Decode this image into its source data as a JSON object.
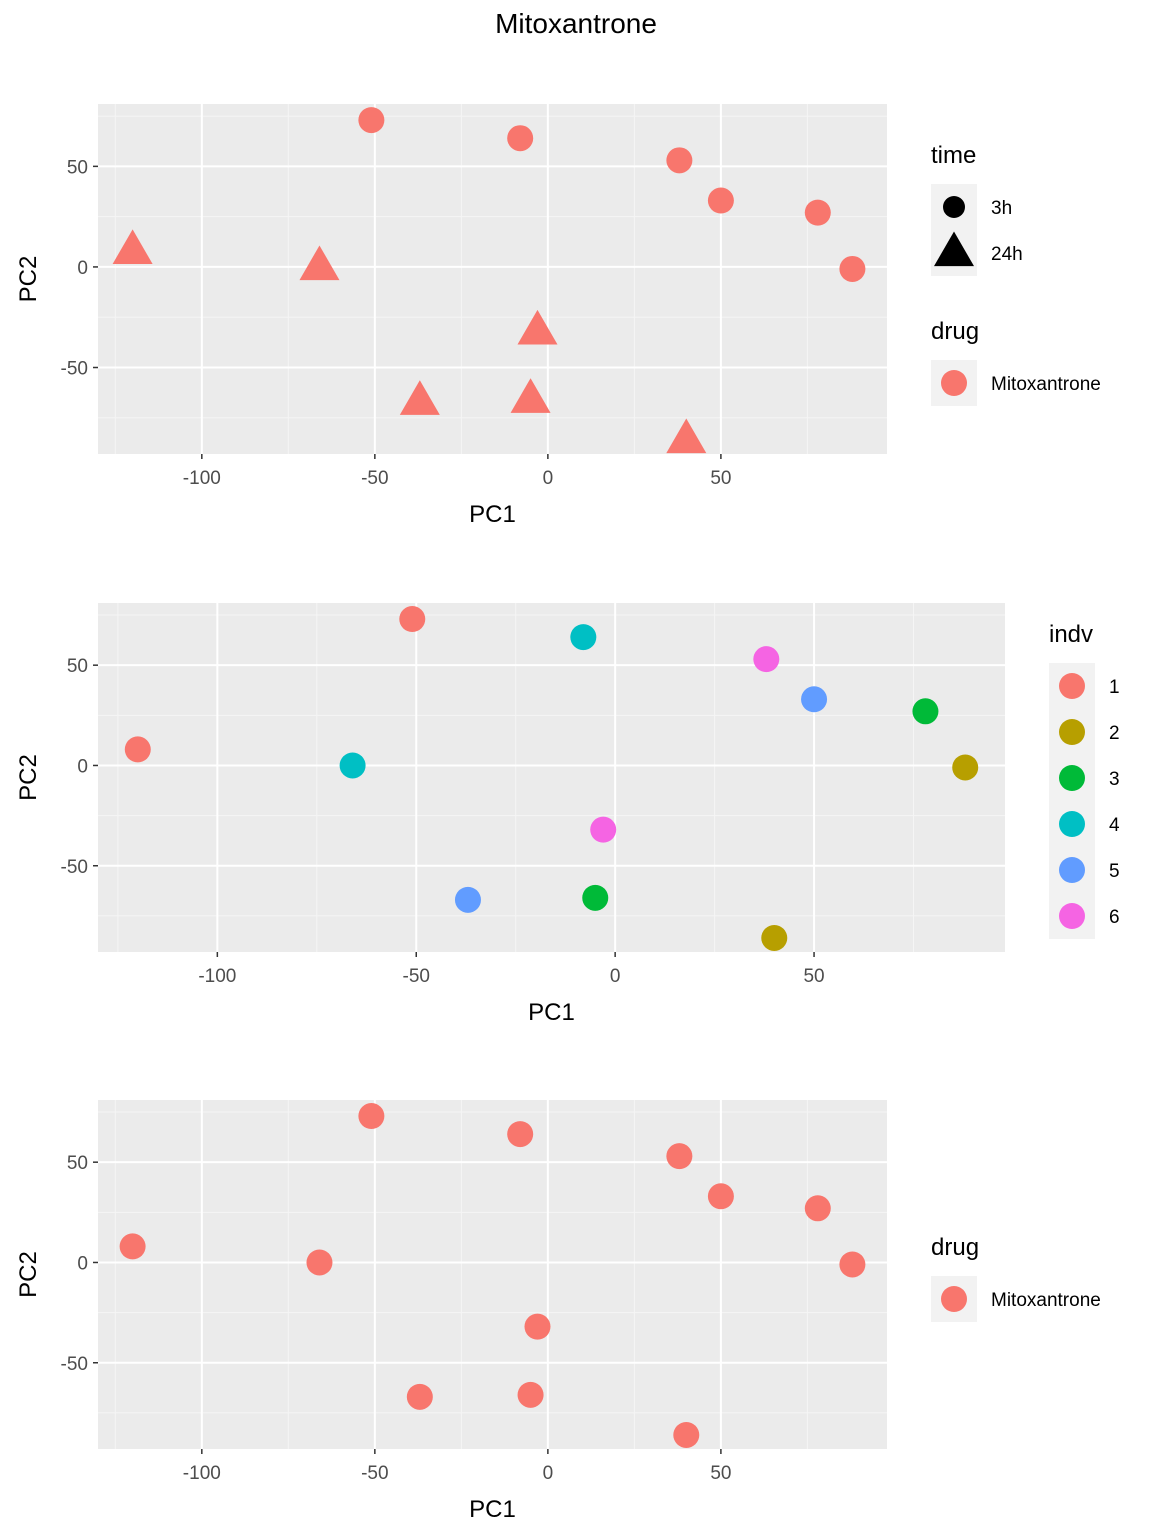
{
  "title": "Mitoxantrone",
  "colors": {
    "panel_bg": "#EBEBEB",
    "grid_major": "#FFFFFF",
    "grid_minor": "#F5F5F5",
    "legend_key_bg": "#F2F2F2",
    "indv_palette": [
      "#F8766D",
      "#B79F00",
      "#00BA38",
      "#00BFC4",
      "#619CFF",
      "#F564E3"
    ]
  },
  "chart_data": [
    {
      "type": "scatter",
      "xlabel": "PC1",
      "ylabel": "PC2",
      "xlim": [
        -130,
        98
      ],
      "ylim": [
        -93,
        81
      ],
      "xticks": [
        -100,
        -50,
        0,
        50
      ],
      "yticks": [
        -50,
        0,
        50
      ],
      "grid": true,
      "point_color": "#F8766D",
      "points": [
        {
          "x": -51,
          "y": 73,
          "time": "3h"
        },
        {
          "x": -8,
          "y": 64,
          "time": "3h"
        },
        {
          "x": 38,
          "y": 53,
          "time": "3h"
        },
        {
          "x": 50,
          "y": 33,
          "time": "3h"
        },
        {
          "x": 78,
          "y": 27,
          "time": "3h"
        },
        {
          "x": 88,
          "y": -1,
          "time": "3h"
        },
        {
          "x": -120,
          "y": 8,
          "time": "24h"
        },
        {
          "x": -66,
          "y": 0,
          "time": "24h"
        },
        {
          "x": -3,
          "y": -32,
          "time": "24h"
        },
        {
          "x": -37,
          "y": -67,
          "time": "24h"
        },
        {
          "x": -5,
          "y": -66,
          "time": "24h"
        },
        {
          "x": 40,
          "y": -86,
          "time": "24h"
        }
      ],
      "legends": [
        {
          "title": "time",
          "entries": [
            {
              "label": "3h",
              "shape": "circle"
            },
            {
              "label": "24h",
              "shape": "triangle"
            }
          ]
        },
        {
          "title": "drug",
          "entries": [
            {
              "label": "Mitoxantrone",
              "shape": "circle"
            }
          ]
        }
      ],
      "legend_placement": "right"
    },
    {
      "type": "scatter",
      "xlabel": "PC1",
      "ylabel": "PC2",
      "xlim": [
        -130,
        98
      ],
      "ylim": [
        -93,
        81
      ],
      "xticks": [
        -100,
        -50,
        0,
        50
      ],
      "yticks": [
        -50,
        0,
        50
      ],
      "grid": true,
      "points": [
        {
          "x": -51,
          "y": 73,
          "indv": "1"
        },
        {
          "x": -120,
          "y": 8,
          "indv": "1"
        },
        {
          "x": -8,
          "y": 64,
          "indv": "4"
        },
        {
          "x": -66,
          "y": 0,
          "indv": "4"
        },
        {
          "x": 38,
          "y": 53,
          "indv": "6"
        },
        {
          "x": -3,
          "y": -32,
          "indv": "6"
        },
        {
          "x": 50,
          "y": 33,
          "indv": "5"
        },
        {
          "x": -37,
          "y": -67,
          "indv": "5"
        },
        {
          "x": 78,
          "y": 27,
          "indv": "3"
        },
        {
          "x": -5,
          "y": -66,
          "indv": "3"
        },
        {
          "x": 88,
          "y": -1,
          "indv": "2"
        },
        {
          "x": 40,
          "y": -86,
          "indv": "2"
        }
      ],
      "legends": [
        {
          "title": "indv",
          "entries": [
            {
              "label": "1",
              "color": "#F8766D"
            },
            {
              "label": "2",
              "color": "#B79F00"
            },
            {
              "label": "3",
              "color": "#00BA38"
            },
            {
              "label": "4",
              "color": "#00BFC4"
            },
            {
              "label": "5",
              "color": "#619CFF"
            },
            {
              "label": "6",
              "color": "#F564E3"
            }
          ]
        }
      ],
      "legend_placement": "right"
    },
    {
      "type": "scatter",
      "xlabel": "PC1",
      "ylabel": "PC2",
      "xlim": [
        -130,
        98
      ],
      "ylim": [
        -93,
        81
      ],
      "xticks": [
        -100,
        -50,
        0,
        50
      ],
      "yticks": [
        -50,
        0,
        50
      ],
      "grid": true,
      "point_color": "#F8766D",
      "points": [
        {
          "x": -51,
          "y": 73
        },
        {
          "x": -8,
          "y": 64
        },
        {
          "x": 38,
          "y": 53
        },
        {
          "x": 50,
          "y": 33
        },
        {
          "x": 78,
          "y": 27
        },
        {
          "x": 88,
          "y": -1
        },
        {
          "x": -120,
          "y": 8
        },
        {
          "x": -66,
          "y": 0
        },
        {
          "x": -3,
          "y": -32
        },
        {
          "x": -37,
          "y": -67
        },
        {
          "x": -5,
          "y": -66
        },
        {
          "x": 40,
          "y": -86
        }
      ],
      "legends": [
        {
          "title": "drug",
          "entries": [
            {
              "label": "Mitoxantrone",
              "shape": "circle"
            }
          ]
        }
      ],
      "legend_placement": "right"
    }
  ]
}
